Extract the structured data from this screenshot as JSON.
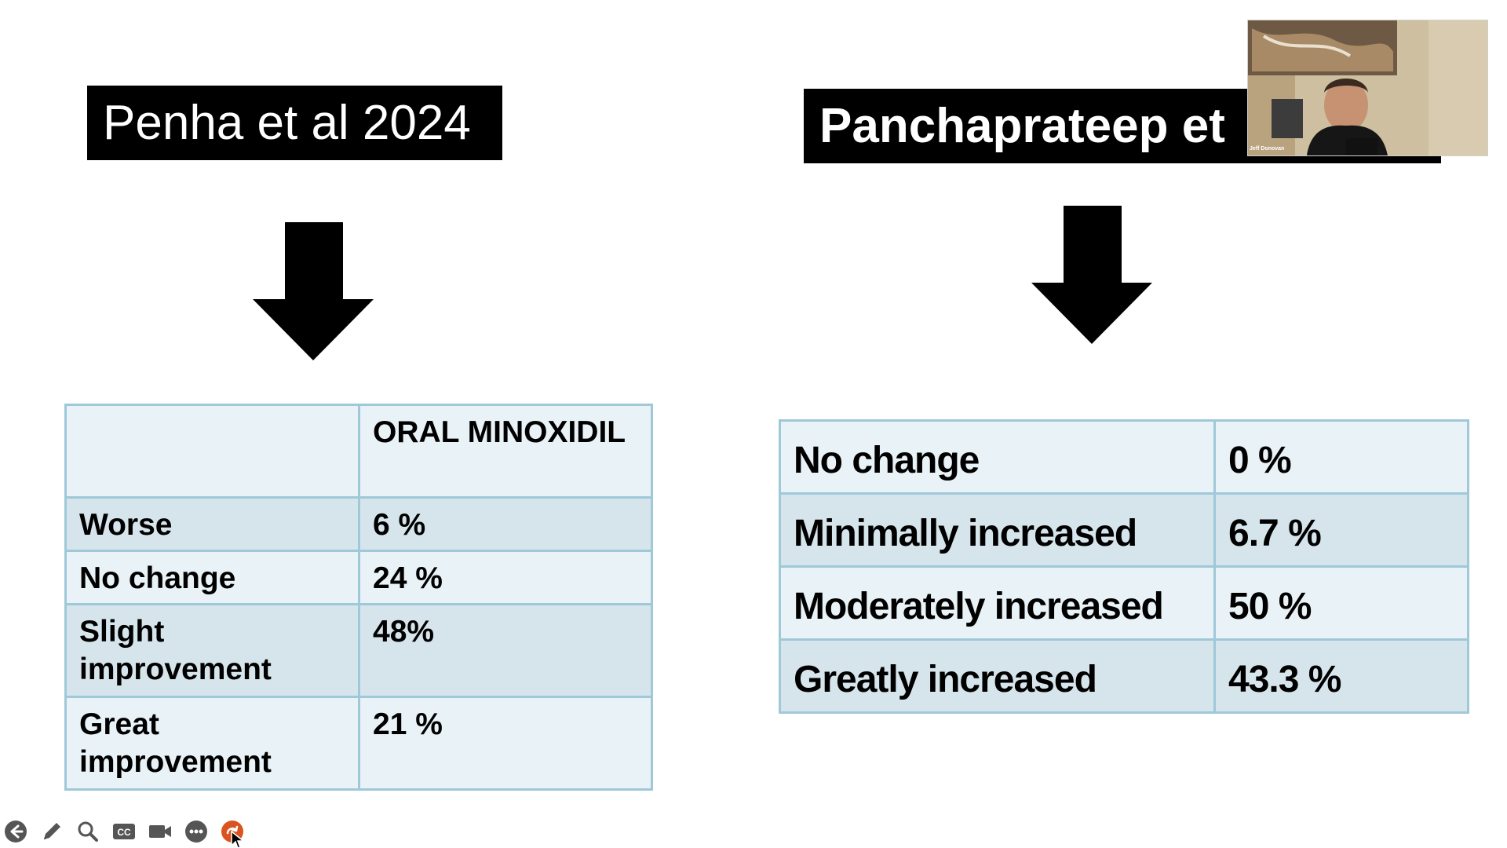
{
  "slide": {
    "left_title": "Penha et al 2024",
    "right_title": "Panchaprateep et",
    "left_table": {
      "header": [
        "",
        "ORAL MINOXIDIL"
      ],
      "rows": [
        {
          "label": "Worse",
          "value": "6 %"
        },
        {
          "label": "No change",
          "value": "24 %"
        },
        {
          "label": "Slight improvement",
          "value": "48%"
        },
        {
          "label": "Great improvement",
          "value": "21 %"
        }
      ]
    },
    "right_table": {
      "rows": [
        {
          "label": "No change",
          "value": "0 %"
        },
        {
          "label": "Minimally increased",
          "value": "6.7 %"
        },
        {
          "label": "Moderately increased",
          "value": "50 %"
        },
        {
          "label": "Greatly increased",
          "value": "43.3 %"
        }
      ]
    }
  },
  "webcam": {
    "name": "Jeff Donovan"
  },
  "toolbar": {
    "items": [
      "back-icon",
      "pen-icon",
      "zoom-icon",
      "captions-icon",
      "camera-icon",
      "more-icon",
      "redo-icon"
    ],
    "cc_label": "CC"
  },
  "colors": {
    "title_bg": "#000000",
    "table_border": "#9fc8d8",
    "row_light": "#e9f2f6",
    "row_dark": "#d6e5ec",
    "accent_orange": "#d9541e",
    "toolbar_icon": "#555555"
  }
}
